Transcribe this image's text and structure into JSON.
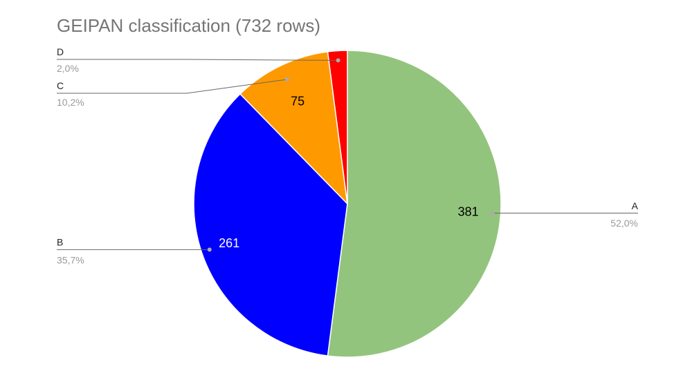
{
  "chart_data": {
    "type": "pie",
    "title": "GEIPAN classification (732 rows)",
    "slices": [
      {
        "name": "A",
        "value": 381,
        "percent_label": "52,0%",
        "value_label": "381",
        "color": "#93c47d",
        "value_color": "#000000"
      },
      {
        "name": "B",
        "value": 261,
        "percent_label": "35,7%",
        "value_label": "261",
        "color": "#0000ff",
        "value_color": "#ffffff"
      },
      {
        "name": "C",
        "value": 75,
        "percent_label": "10,2%",
        "value_label": "75",
        "color": "#ff9900",
        "value_color": "#000000"
      },
      {
        "name": "D",
        "value": 15,
        "percent_label": "2,0%",
        "value_label": "",
        "color": "#ff0000",
        "value_color": "#000000"
      }
    ],
    "start_angle_deg": 0,
    "direction": "clockwise",
    "leader_line_color": "#666666"
  }
}
